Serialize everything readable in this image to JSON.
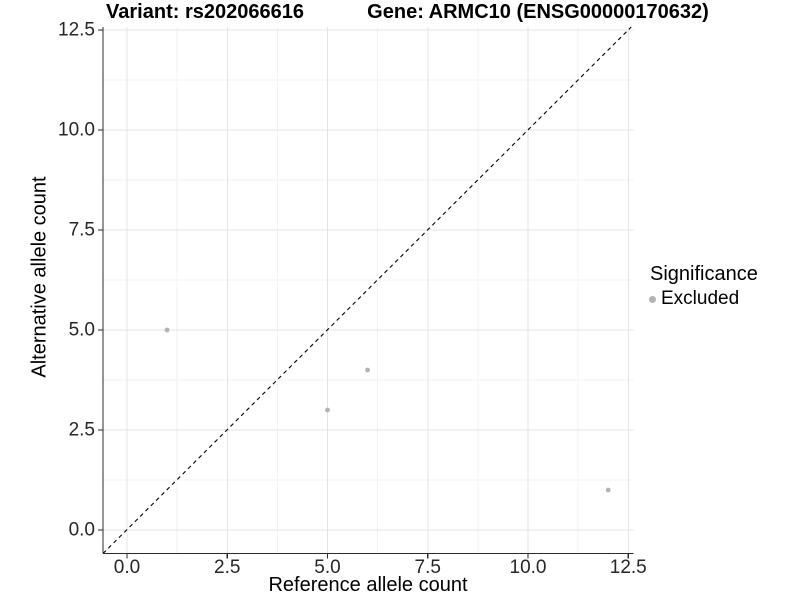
{
  "chart_data": {
    "type": "scatter",
    "title_left": "Variant: rs202066616",
    "title_right": "Gene: ARMC10 (ENSG00000170632)",
    "xlabel": "Reference allele count",
    "ylabel": "Alternative allele count",
    "xlim": [
      -0.6,
      12.6
    ],
    "ylim": [
      -0.6,
      12.6
    ],
    "x_ticks": [
      0,
      2.5,
      5,
      7.5,
      10,
      12.5
    ],
    "x_tick_labels": [
      "0.0",
      "2.5",
      "5.0",
      "7.5",
      "10.0",
      "12.5"
    ],
    "y_ticks": [
      0,
      2.5,
      5,
      7.5,
      10,
      12.5
    ],
    "y_tick_labels": [
      "0.0",
      "2.5",
      "5.0",
      "7.5",
      "10.0",
      "12.5"
    ],
    "grid": "major and minor gridlines on white background",
    "identity_line": {
      "slope": 1,
      "intercept": 0,
      "style": "dashed",
      "color": "#000000"
    },
    "series": [
      {
        "name": "Excluded",
        "color": "#b3b3b3",
        "points": [
          {
            "x": 1,
            "y": 5
          },
          {
            "x": 5,
            "y": 3
          },
          {
            "x": 6,
            "y": 4
          },
          {
            "x": 12,
            "y": 1
          }
        ]
      }
    ],
    "legend": {
      "title": "Significance",
      "position": "right",
      "items": [
        {
          "label": "Excluded",
          "color": "#b3b3b3"
        }
      ]
    }
  },
  "colors": {
    "background": "#ffffff",
    "grid_major": "#e4e4e4",
    "grid_minor": "#f2f2f2",
    "axis_line": "#2b2b2b",
    "tick_mark": "#2b2b2b",
    "tick_text": "#262626",
    "title_text": "#000000",
    "point": "#b3b3b3",
    "identity_line": "#000000"
  }
}
